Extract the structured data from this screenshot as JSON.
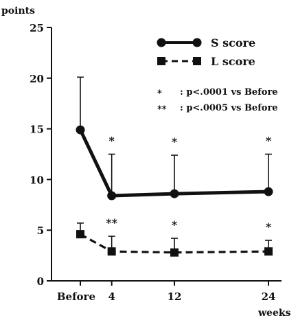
{
  "chart_data": {
    "type": "line",
    "ylabel": "points",
    "xlabel": "weeks",
    "x_categories": [
      "Before",
      "4",
      "12",
      "24"
    ],
    "x_values": [
      0,
      4,
      12,
      24
    ],
    "ylim": [
      0,
      25
    ],
    "y_ticks": [
      0,
      5,
      10,
      15,
      20,
      25
    ],
    "grid": false,
    "legend_position": "top-right",
    "series": [
      {
        "name": "S score",
        "style": "solid",
        "marker": "circle",
        "values": [
          14.9,
          8.4,
          8.6,
          8.8
        ],
        "error_upper": [
          20.1,
          12.5,
          12.4,
          12.5
        ],
        "significance": [
          "",
          "*",
          "*",
          "*"
        ]
      },
      {
        "name": "L score",
        "style": "dashed",
        "marker": "square",
        "values": [
          4.6,
          2.9,
          2.8,
          2.9
        ],
        "error_upper": [
          5.7,
          4.4,
          4.2,
          4.0
        ],
        "significance": [
          "",
          "**",
          "*",
          "*"
        ]
      }
    ],
    "annotations": [
      {
        "symbol": "*",
        "text": ": p<.0001 vs Before"
      },
      {
        "symbol": "**",
        "text": ": p<.0005 vs Before"
      }
    ]
  }
}
